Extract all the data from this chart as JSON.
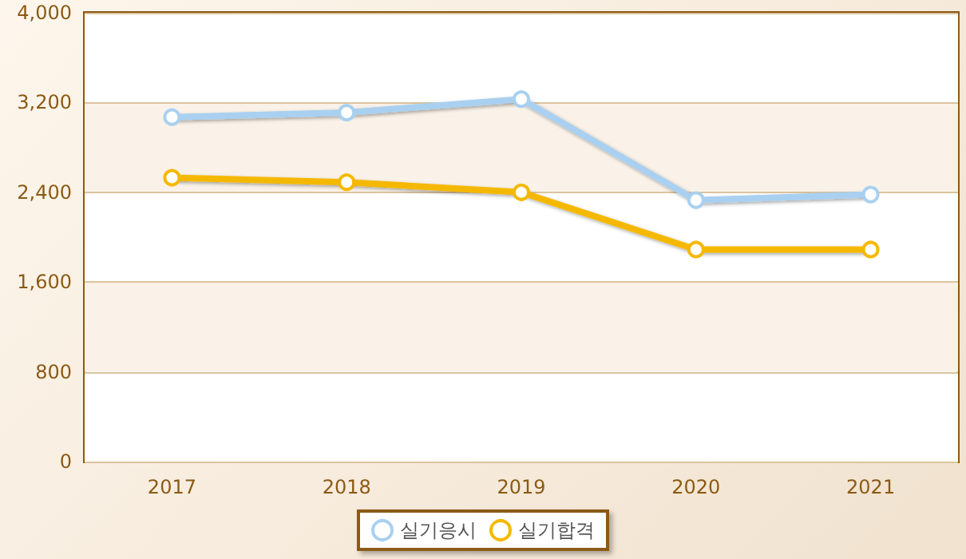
{
  "chart_data": {
    "type": "line",
    "categories": [
      "2017",
      "2018",
      "2019",
      "2020",
      "2021"
    ],
    "series": [
      {
        "name": "실기응시",
        "color": "#a9d0f0",
        "values": [
          3070,
          3110,
          3230,
          2330,
          2380
        ]
      },
      {
        "name": "실기합격",
        "color": "#f5b800",
        "values": [
          2530,
          2490,
          2400,
          1890,
          1890
        ]
      }
    ],
    "ylim": [
      0,
      4000
    ],
    "yticks": [
      0,
      800,
      {
        "value": 1600,
        "label": "1,600"
      },
      {
        "value": 2400,
        "label": "2,400"
      },
      {
        "value": 3200,
        "label": "3,200"
      },
      {
        "value": 4000,
        "label": "4,000"
      }
    ],
    "grid": "y",
    "legend": "bottom",
    "marker": "circle",
    "line_style": "solid"
  }
}
